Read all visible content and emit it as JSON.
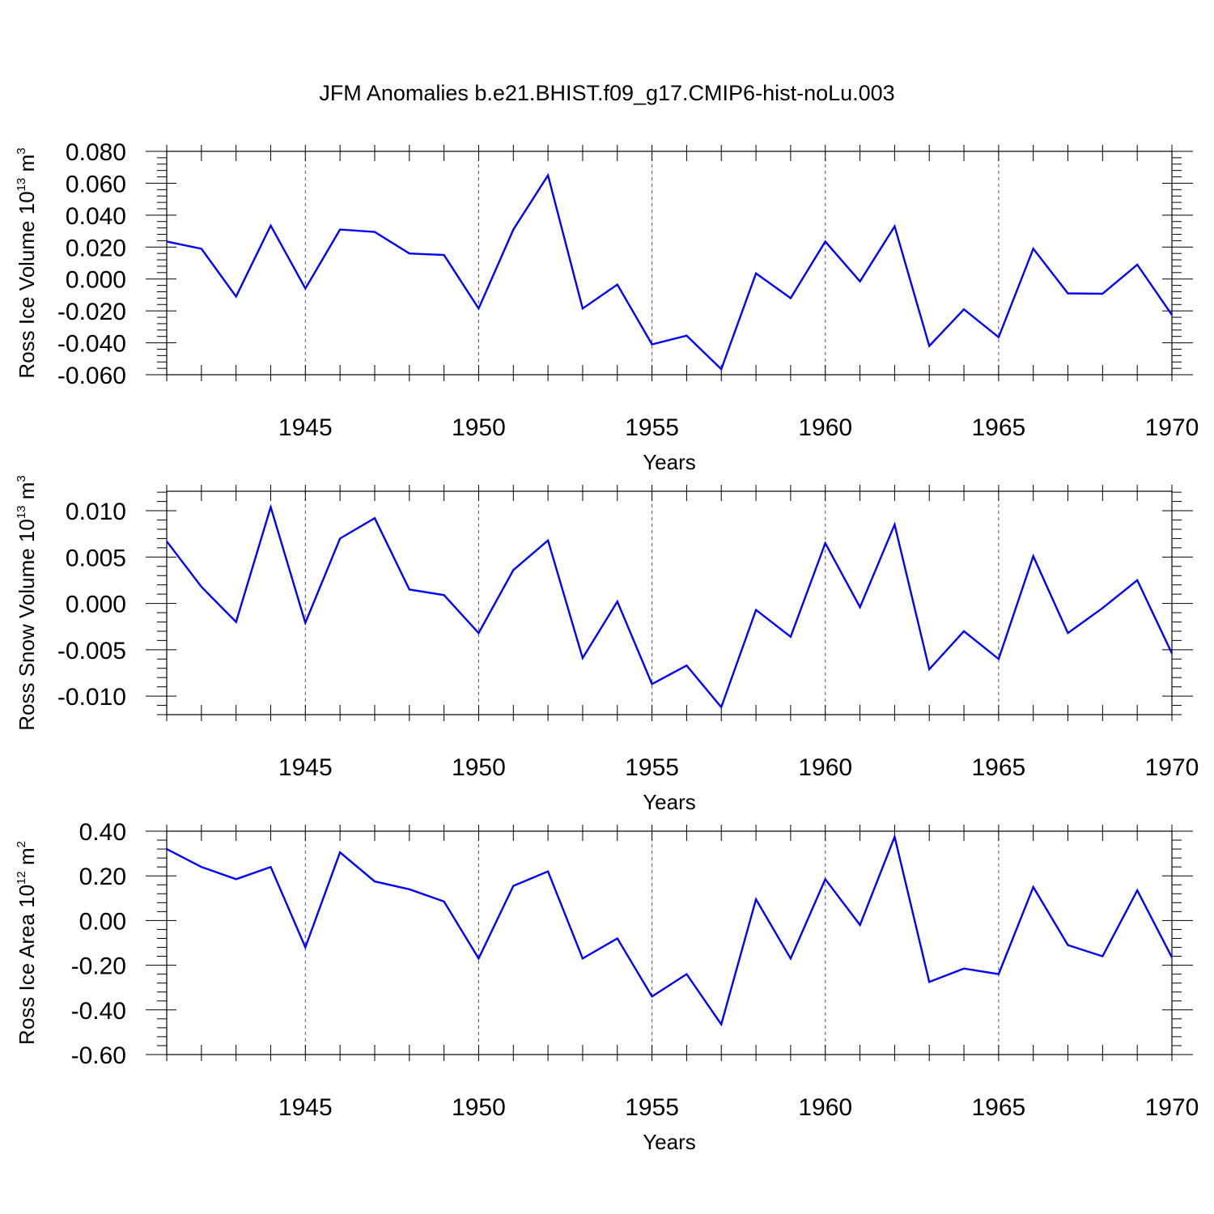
{
  "figure": {
    "title": "JFM Anomalies b.e21.BHIST.f09_g17.CMIP6-hist-noLu.003"
  },
  "chart_data": [
    {
      "type": "line",
      "ylabel": {
        "main": "Ross Ice Volume 10",
        "sup": "13",
        "unit": " m",
        "unit_sup": "3"
      },
      "xlabel": "Years",
      "xlim": [
        1941,
        1970
      ],
      "ylim": [
        -0.06,
        0.08
      ],
      "yticks": [
        -0.06,
        -0.04,
        -0.02,
        0.0,
        0.02,
        0.04,
        0.06,
        0.08
      ],
      "ytick_labels": [
        "-0.060",
        "-0.040",
        "-0.020",
        "0.000",
        "0.020",
        "0.040",
        "0.060",
        "0.080"
      ],
      "xticks": [
        1945,
        1950,
        1955,
        1960,
        1965,
        1970
      ],
      "xtick_labels": [
        "1945",
        "1950",
        "1955",
        "1960",
        "1965",
        "1970"
      ],
      "grid": "vertical-dashed-at-major-x",
      "color": "#0000ff",
      "x": [
        1941,
        1942,
        1943,
        1944,
        1945,
        1946,
        1947,
        1948,
        1949,
        1950,
        1951,
        1952,
        1953,
        1954,
        1955,
        1956,
        1957,
        1958,
        1959,
        1960,
        1961,
        1962,
        1963,
        1964,
        1965,
        1966,
        1967,
        1968,
        1969,
        1970
      ],
      "y": [
        0.0235,
        0.019,
        -0.011,
        0.0335,
        -0.006,
        0.031,
        0.0295,
        0.016,
        0.015,
        -0.0185,
        0.031,
        0.065,
        -0.0185,
        -0.0035,
        -0.041,
        -0.0355,
        -0.0565,
        0.0035,
        -0.012,
        0.0235,
        -0.0015,
        0.033,
        -0.042,
        -0.019,
        -0.0365,
        0.019,
        -0.009,
        -0.0092,
        0.009,
        -0.0225
      ]
    },
    {
      "type": "line",
      "ylabel": {
        "main": "Ross Snow Volume 10",
        "sup": "13",
        "unit": " m",
        "unit_sup": "3"
      },
      "xlabel": "Years",
      "xlim": [
        1941,
        1970
      ],
      "ylim": [
        -0.012,
        0.0121
      ],
      "yticks": [
        -0.01,
        -0.005,
        0.0,
        0.005,
        0.01
      ],
      "ytick_labels": [
        "-0.010",
        "-0.005",
        "0.000",
        "0.005",
        "0.010"
      ],
      "xticks": [
        1945,
        1950,
        1955,
        1960,
        1965,
        1970
      ],
      "xtick_labels": [
        "1945",
        "1950",
        "1955",
        "1960",
        "1965",
        "1970"
      ],
      "grid": "vertical-dashed-at-major-x",
      "color": "#0000ff",
      "x": [
        1941,
        1942,
        1943,
        1944,
        1945,
        1946,
        1947,
        1948,
        1949,
        1950,
        1951,
        1952,
        1953,
        1954,
        1955,
        1956,
        1957,
        1958,
        1959,
        1960,
        1961,
        1962,
        1963,
        1964,
        1965,
        1966,
        1967,
        1968,
        1969,
        1970
      ],
      "y": [
        0.0067,
        0.0018,
        -0.002,
        0.0104,
        -0.0021,
        0.007,
        0.0092,
        0.0015,
        0.0009,
        -0.0032,
        0.0036,
        0.0068,
        -0.0059,
        0.0002,
        -0.0087,
        -0.0067,
        -0.0112,
        -0.0007,
        -0.0036,
        0.0065,
        -0.0004,
        0.0085,
        -0.0071,
        -0.003,
        -0.006,
        0.0051,
        -0.0032,
        -0.0005,
        0.0025,
        -0.0054
      ]
    },
    {
      "type": "line",
      "ylabel": {
        "main": "Ross Ice Area 10",
        "sup": "12",
        "unit": " m",
        "unit_sup": "2"
      },
      "xlabel": "Years",
      "xlim": [
        1941,
        1970
      ],
      "ylim": [
        -0.6,
        0.4
      ],
      "yticks": [
        -0.6,
        -0.4,
        -0.2,
        0.0,
        0.2,
        0.4
      ],
      "ytick_labels": [
        "-0.60",
        "-0.40",
        "-0.20",
        "0.00",
        "0.20",
        "0.40"
      ],
      "xticks": [
        1945,
        1950,
        1955,
        1960,
        1965,
        1970
      ],
      "xtick_labels": [
        "1945",
        "1950",
        "1955",
        "1960",
        "1965",
        "1970"
      ],
      "grid": "vertical-dashed-at-major-x",
      "color": "#0000ff",
      "x": [
        1941,
        1942,
        1943,
        1944,
        1945,
        1946,
        1947,
        1948,
        1949,
        1950,
        1951,
        1952,
        1953,
        1954,
        1955,
        1956,
        1957,
        1958,
        1959,
        1960,
        1961,
        1962,
        1963,
        1964,
        1965,
        1966,
        1967,
        1968,
        1969,
        1970
      ],
      "y": [
        0.32,
        0.24,
        0.185,
        0.24,
        -0.12,
        0.305,
        0.175,
        0.14,
        0.085,
        -0.17,
        0.155,
        0.22,
        -0.17,
        -0.08,
        -0.34,
        -0.24,
        -0.465,
        0.095,
        -0.17,
        0.185,
        -0.02,
        0.375,
        -0.275,
        -0.215,
        -0.24,
        0.15,
        -0.11,
        -0.16,
        0.135,
        -0.165
      ]
    }
  ]
}
